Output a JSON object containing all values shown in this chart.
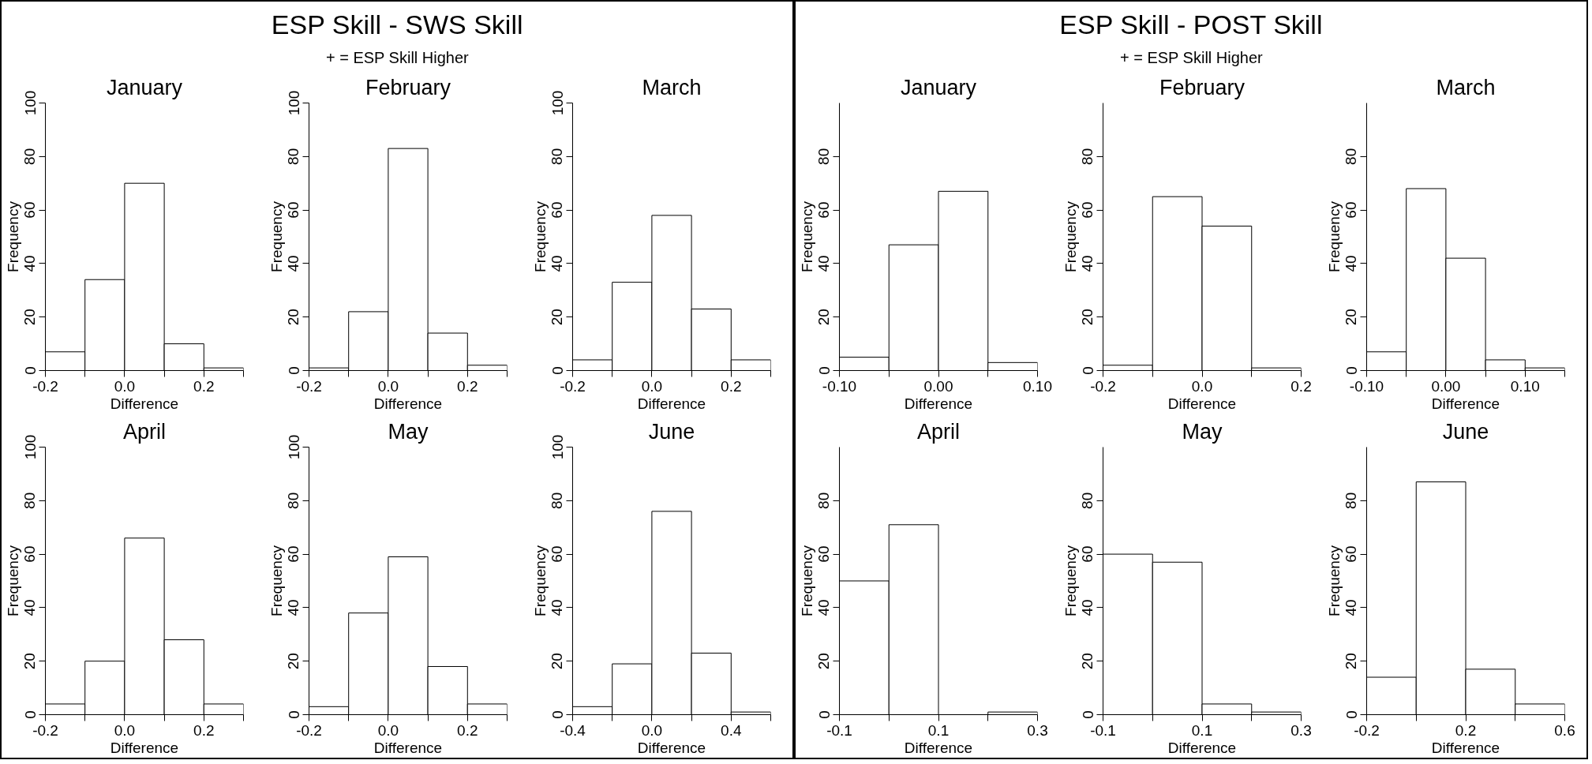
{
  "chart_data": [
    {
      "type": "other",
      "title": "ESP Skill - SWS Skill",
      "subtitle": "+ = ESP Skill Higher"
    },
    {
      "type": "histogram",
      "title": "January",
      "xlabel": "Difference",
      "ylabel": "Frequency",
      "bins": [
        -0.2,
        -0.1,
        0,
        0.1,
        0.2,
        0.3
      ],
      "values": [
        7,
        34,
        70,
        10,
        1
      ],
      "xlim": [
        -0.2,
        0.3
      ],
      "ylim": [
        0,
        100
      ],
      "xticks": [
        -0.2,
        {
          "value": -0.1,
          "label": null
        },
        {
          "value": 0,
          "label": "0.0"
        },
        {
          "value": 0.1,
          "label": null
        },
        0.2,
        {
          "value": 0.3,
          "label": null
        }
      ],
      "yticks": [
        0,
        20,
        40,
        60,
        80,
        100
      ]
    },
    {
      "type": "histogram",
      "title": "February",
      "xlabel": "Difference",
      "ylabel": "Frequency",
      "bins": [
        -0.2,
        -0.1,
        0,
        0.1,
        0.2,
        0.3
      ],
      "values": [
        1,
        22,
        83,
        14,
        2
      ],
      "xlim": [
        -0.2,
        0.3
      ],
      "ylim": [
        0,
        100
      ],
      "xticks": [
        -0.2,
        {
          "value": -0.1,
          "label": null
        },
        {
          "value": 0,
          "label": "0.0"
        },
        {
          "value": 0.1,
          "label": null
        },
        0.2,
        {
          "value": 0.3,
          "label": null
        }
      ],
      "yticks": [
        0,
        20,
        40,
        60,
        80,
        100
      ]
    },
    {
      "type": "histogram",
      "title": "March",
      "xlabel": "Difference",
      "ylabel": "Frequency",
      "bins": [
        -0.2,
        -0.1,
        0,
        0.1,
        0.2,
        0.3
      ],
      "values": [
        4,
        33,
        58,
        23,
        4
      ],
      "xlim": [
        -0.2,
        0.3
      ],
      "ylim": [
        0,
        100
      ],
      "xticks": [
        -0.2,
        {
          "value": -0.1,
          "label": null
        },
        {
          "value": 0,
          "label": "0.0"
        },
        {
          "value": 0.1,
          "label": null
        },
        0.2,
        {
          "value": 0.3,
          "label": null
        }
      ],
      "yticks": [
        0,
        20,
        40,
        60,
        80,
        100
      ]
    },
    {
      "type": "histogram",
      "title": "April",
      "xlabel": "Difference",
      "ylabel": "Frequency",
      "bins": [
        -0.2,
        -0.1,
        0,
        0.1,
        0.2,
        0.3
      ],
      "values": [
        4,
        20,
        66,
        28,
        4
      ],
      "xlim": [
        -0.2,
        0.3
      ],
      "ylim": [
        0,
        100
      ],
      "xticks": [
        -0.2,
        {
          "value": -0.1,
          "label": null
        },
        {
          "value": 0,
          "label": "0.0"
        },
        {
          "value": 0.1,
          "label": null
        },
        0.2,
        {
          "value": 0.3,
          "label": null
        }
      ],
      "yticks": [
        0,
        20,
        40,
        60,
        80,
        100
      ]
    },
    {
      "type": "histogram",
      "title": "May",
      "xlabel": "Difference",
      "ylabel": "Frequency",
      "bins": [
        -0.2,
        -0.1,
        0,
        0.1,
        0.2,
        0.3
      ],
      "values": [
        3,
        38,
        59,
        18,
        4
      ],
      "xlim": [
        -0.2,
        0.3
      ],
      "ylim": [
        0,
        100
      ],
      "xticks": [
        -0.2,
        {
          "value": -0.1,
          "label": null
        },
        {
          "value": 0,
          "label": "0.0"
        },
        {
          "value": 0.1,
          "label": null
        },
        0.2,
        {
          "value": 0.3,
          "label": null
        }
      ],
      "yticks": [
        0,
        20,
        40,
        60,
        80,
        100
      ]
    },
    {
      "type": "histogram",
      "title": "June",
      "xlabel": "Difference",
      "ylabel": "Frequency",
      "bins": [
        -0.4,
        -0.2,
        0,
        0.2,
        0.4,
        0.6
      ],
      "values": [
        3,
        19,
        76,
        23,
        1
      ],
      "xlim": [
        -0.4,
        0.6
      ],
      "ylim": [
        0,
        100
      ],
      "xticks": [
        -0.4,
        {
          "value": -0.2,
          "label": null
        },
        {
          "value": 0,
          "label": "0.0"
        },
        {
          "value": 0.2,
          "label": null
        },
        0.4,
        {
          "value": 0.6,
          "label": null
        }
      ],
      "yticks": [
        0,
        20,
        40,
        60,
        80,
        100
      ]
    },
    {
      "type": "other",
      "title": "ESP Skill - POST Skill",
      "subtitle": "+ = ESP Skill Higher"
    },
    {
      "type": "histogram",
      "title": "January",
      "xlabel": "Difference",
      "ylabel": "Frequency",
      "bins": [
        -0.1,
        -0.05,
        0,
        0.05,
        0.1
      ],
      "values": [
        5,
        47,
        67,
        3
      ],
      "xlim": [
        -0.1,
        0.1
      ],
      "ylim": [
        0,
        100
      ],
      "xticks": [
        {
          "value": -0.1,
          "label": "-0.10"
        },
        {
          "value": -0.05,
          "label": null
        },
        {
          "value": 0,
          "label": "0.00"
        },
        {
          "value": 0.05,
          "label": null
        },
        {
          "value": 0.1,
          "label": "0.10"
        }
      ],
      "yticks": [
        0,
        20,
        40,
        60,
        80
      ]
    },
    {
      "type": "histogram",
      "title": "February",
      "xlabel": "Difference",
      "ylabel": "Frequency",
      "bins": [
        -0.2,
        -0.1,
        0,
        0.1,
        0.2
      ],
      "values": [
        2,
        65,
        54,
        1
      ],
      "xlim": [
        -0.2,
        0.2
      ],
      "ylim": [
        0,
        100
      ],
      "xticks": [
        -0.2,
        {
          "value": -0.1,
          "label": null
        },
        {
          "value": 0,
          "label": "0.0"
        },
        {
          "value": 0.1,
          "label": null
        },
        0.2
      ],
      "yticks": [
        0,
        20,
        40,
        60,
        80
      ]
    },
    {
      "type": "histogram",
      "title": "March",
      "xlabel": "Difference",
      "ylabel": "Frequency",
      "bins": [
        -0.1,
        -0.05,
        0,
        0.05,
        0.1,
        0.15
      ],
      "values": [
        7,
        68,
        42,
        4,
        1
      ],
      "xlim": [
        -0.1,
        0.15
      ],
      "ylim": [
        0,
        100
      ],
      "xticks": [
        {
          "value": -0.1,
          "label": "-0.10"
        },
        {
          "value": -0.05,
          "label": null
        },
        {
          "value": 0,
          "label": "0.00"
        },
        {
          "value": 0.05,
          "label": null
        },
        {
          "value": 0.1,
          "label": "0.10"
        },
        {
          "value": 0.15,
          "label": null
        }
      ],
      "yticks": [
        0,
        20,
        40,
        60,
        80
      ]
    },
    {
      "type": "histogram",
      "title": "April",
      "xlabel": "Difference",
      "ylabel": "Frequency",
      "bins": [
        -0.1,
        0,
        0.1,
        0.2,
        0.3
      ],
      "values": [
        50,
        71,
        0,
        1
      ],
      "xlim": [
        -0.1,
        0.3
      ],
      "ylim": [
        0,
        100
      ],
      "xticks": [
        -0.1,
        {
          "value": 0,
          "label": null
        },
        0.1,
        {
          "value": 0.2,
          "label": null
        },
        0.3
      ],
      "yticks": [
        0,
        20,
        40,
        60,
        80
      ]
    },
    {
      "type": "histogram",
      "title": "May",
      "xlabel": "Difference",
      "ylabel": "Frequency",
      "bins": [
        -0.1,
        0,
        0.1,
        0.2,
        0.3
      ],
      "values": [
        60,
        57,
        4,
        1
      ],
      "xlim": [
        -0.1,
        0.3
      ],
      "ylim": [
        0,
        100
      ],
      "xticks": [
        -0.1,
        {
          "value": 0,
          "label": null
        },
        0.1,
        {
          "value": 0.2,
          "label": null
        },
        0.3
      ],
      "yticks": [
        0,
        20,
        40,
        60,
        80
      ]
    },
    {
      "type": "histogram",
      "title": "June",
      "xlabel": "Difference",
      "ylabel": "Frequency",
      "bins": [
        -0.2,
        0,
        0.2,
        0.4,
        0.6
      ],
      "values": [
        14,
        87,
        17,
        4
      ],
      "xlim": [
        -0.2,
        0.6
      ],
      "ylim": [
        0,
        100
      ],
      "xticks": [
        -0.2,
        {
          "value": 0,
          "label": null
        },
        0.2,
        {
          "value": 0.4,
          "label": null
        },
        0.6
      ],
      "yticks": [
        0,
        20,
        40,
        60,
        80
      ]
    }
  ]
}
